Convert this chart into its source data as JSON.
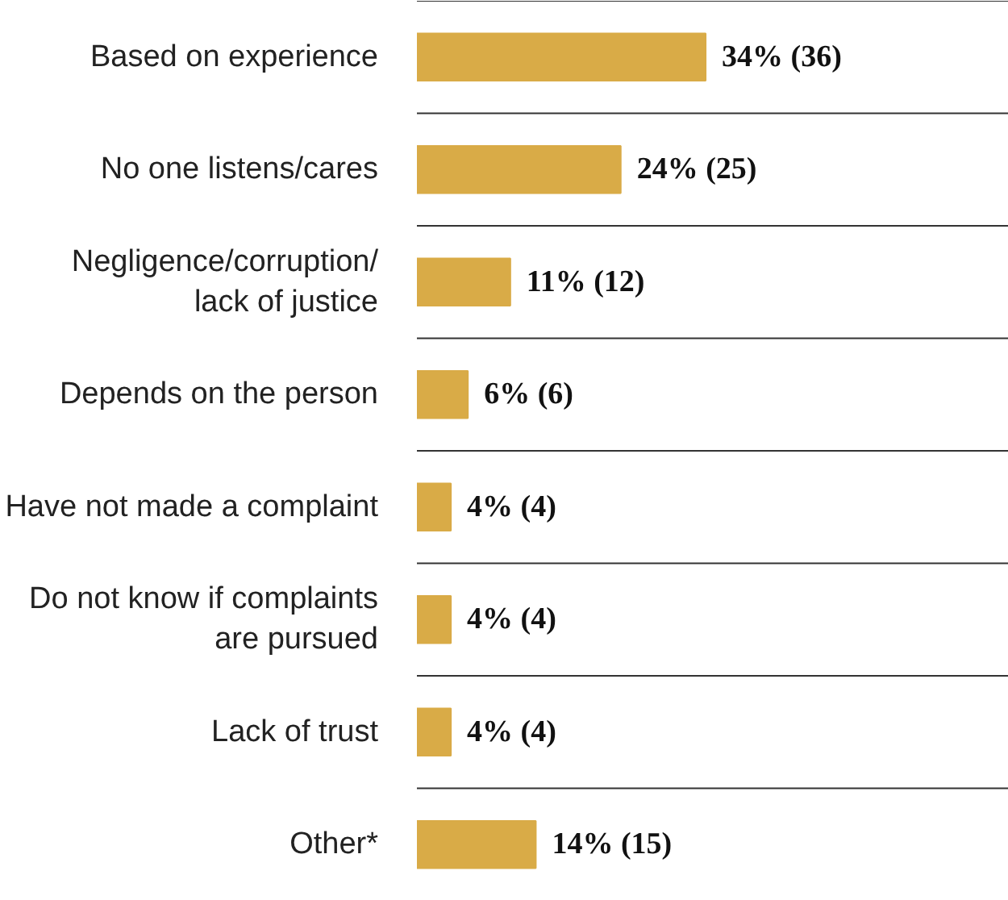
{
  "chart_data": {
    "type": "bar",
    "orientation": "horizontal",
    "categories": [
      "Based on experience",
      "No one listens/cares",
      "Negligence/corruption/\nlack of justice",
      "Depends on the person",
      "Have not made a complaint",
      "Do not know if complaints\nare pursued",
      "Lack of trust",
      "Other*"
    ],
    "values": [
      34,
      24,
      11,
      6,
      4,
      4,
      4,
      14
    ],
    "value_labels": [
      "34% (36)",
      "24% (25)",
      "11% (12)",
      "6% (6)",
      "4% (4)",
      "4% (4)",
      "4% (4)",
      "14% (15)"
    ],
    "color": "#d9ab47",
    "grid": "y"
  }
}
